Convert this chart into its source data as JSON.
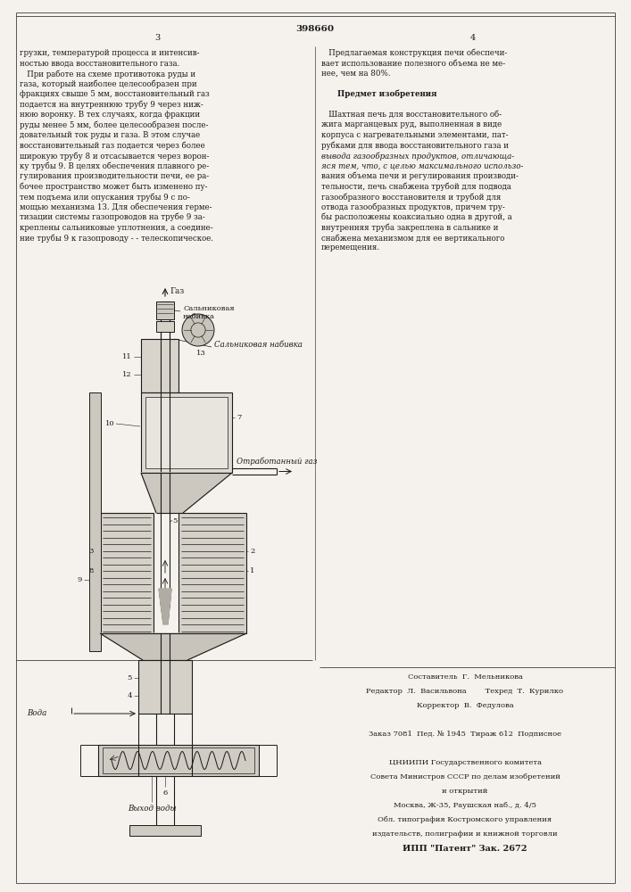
{
  "bg_color": "#f5f2ed",
  "line_color": "#1a1a1a",
  "text_color": "#1a1a1a",
  "patent_number": "398660",
  "page_left": "3",
  "page_right": "4",
  "text_left_col": [
    "грузки, температурой процесса и интенсив-",
    "ностью ввода восстановительного газа.",
    "   При работе на схеме противотока руды и",
    "газа, который наиболее целесообразен при",
    "фракциях свыше 5 мм, восстановительный газ",
    "подается на внутреннюю трубу 9 через ниж-",
    "нюю воронку. В тех случаях, когда фракции",
    "руды менее 5 мм, более целесообразен после-",
    "довательный ток руды и газа. В этом случае",
    "восстановительный газ подается через более",
    "широкую трубу 8 и отсасывается через ворон-",
    "ку трубы 9. В целях обеспечения плавного ре-",
    "гулирования производительности печи, ее ра-",
    "бочее пространство может быть изменено пу-",
    "тем подъема или опускания трубы 9 с по-",
    "мощью механизма 13. Для обеспечения герме-",
    "тизации системы газопроводов на трубе 9 за-",
    "креплены сальниковые уплотнения, а соедине-",
    "ние трубы 9 к газопроводу - - телескопическое."
  ],
  "text_right_col": [
    "   Предлагаемая конструкция печи обеспечи-",
    "вает использование полезного объема не ме-",
    "нее, чем на 80%.",
    "",
    "      Предмет изобретения",
    "",
    "   Шахтная печь для восстановительного об-",
    "жига марганцевых руд, выполненная в виде",
    "корпуса с нагревательными элементами, пат-",
    "рубками для ввода восстановительного газа и",
    "вывода газообразных продуктов, отличающа-",
    "яся тем, что, с целью максимального использо-",
    "вания объема печи и регулирования производи-",
    "тельности, печь снабжена трубой для подвода",
    "газообразного восстановителя и трубой для",
    "отвода газообразных продуктов, причем тру-",
    "бы расположены коаксиально одна в другой, а",
    "внутренняя труба закреплена в сальнике и",
    "снабжена механизмом для ее вертикального",
    "перемещения."
  ],
  "colophon": [
    [
      "center",
      "Составитель  Г.  Мельникова"
    ],
    [
      "center",
      "Редактор  Л.  Васильвона        Техред  Т.  Курилко"
    ],
    [
      "center",
      "Корректор  В.  Федулова"
    ],
    [
      "center",
      ""
    ],
    [
      "center",
      "Заказ 7081  Пед. № 1945  Тираж 612  Подписное"
    ],
    [
      "center",
      ""
    ],
    [
      "center",
      "ЦНИИПИ Государственного комитета"
    ],
    [
      "center",
      "Совета Министров СССР по делам изобретений"
    ],
    [
      "center",
      "и открытий"
    ],
    [
      "center",
      "Москва, Ж-35, Раушская наб., д. 4/5"
    ],
    [
      "center",
      "Обл. типография Костромского управления"
    ],
    [
      "center",
      "издательств, полиграфии и книжной торговли"
    ],
    [
      "bold",
      "ИПП \"Патент\" Зак. 2672"
    ]
  ]
}
